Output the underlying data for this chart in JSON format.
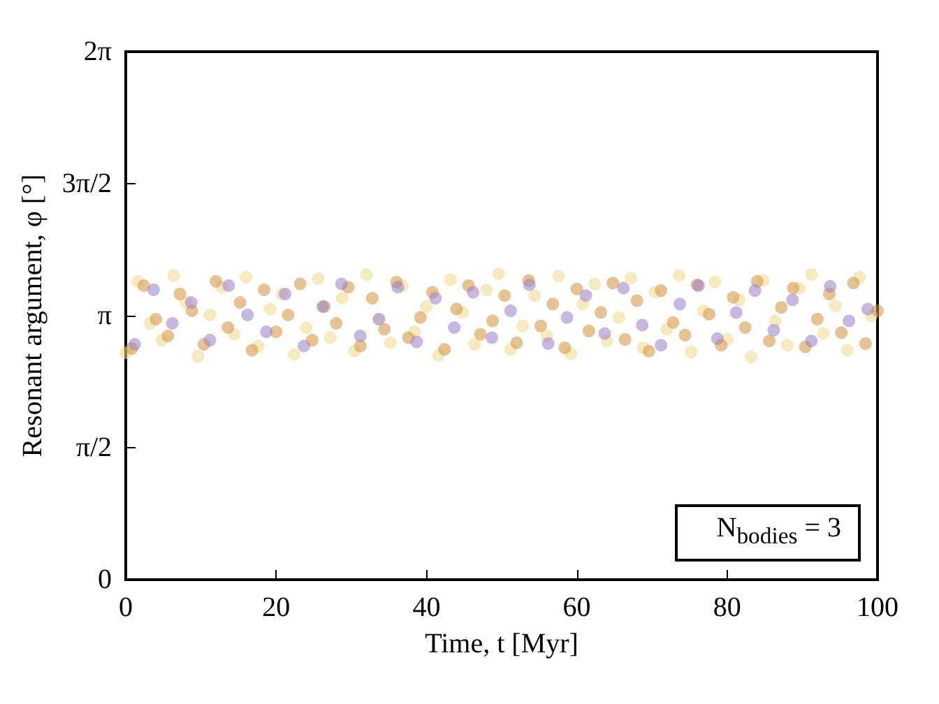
{
  "chart_data": {
    "type": "scatter",
    "xlabel": "Time, t [Myr]",
    "ylabel": "Resonant argument, φ [°]",
    "xlim": [
      0,
      100
    ],
    "xticks": [
      0,
      20,
      40,
      60,
      80,
      100
    ],
    "ylim": [
      0,
      6.2832
    ],
    "yticks": [
      {
        "value": 0,
        "label": "0"
      },
      {
        "value": 1.5708,
        "label": "π/2"
      },
      {
        "value": 3.1416,
        "label": "π"
      },
      {
        "value": 4.7124,
        "label": "3π/2"
      },
      {
        "value": 6.2832,
        "label": "2π"
      }
    ],
    "grid": false,
    "marker": "circle",
    "annotations": [
      "N$_{bodies}$ = 3"
    ],
    "series": [
      {
        "color": "#f0d88a",
        "x": [
          0,
          1.6,
          3.2,
          4.8,
          6.4,
          8,
          9.6,
          11.2,
          12.8,
          14.4,
          16,
          17.6,
          19.2,
          20.8,
          22.4,
          24,
          25.6,
          27.2,
          28.8,
          30.4,
          32,
          33.6,
          35.2,
          36.8,
          38.4,
          40,
          41.6,
          43.2,
          44.8,
          46.4,
          48,
          49.6,
          51.2,
          52.8,
          54.4,
          56,
          57.6,
          59.2,
          60.8,
          62.4,
          64,
          65.6,
          67.2,
          68.8,
          70.4,
          72,
          73.6,
          75.2,
          76.8,
          78.4,
          80,
          81.6,
          83.2,
          84.8,
          86.4,
          88,
          89.6,
          91.2,
          92.8,
          94.4,
          96,
          97.6,
          99.2
        ],
        "values": [
          2.7,
          3.55,
          3.05,
          2.85,
          3.62,
          3.3,
          2.66,
          3.15,
          3.48,
          2.92,
          3.6,
          2.78,
          3.22,
          3.4,
          2.68,
          3.0,
          3.58,
          2.88,
          3.35,
          2.72,
          3.63,
          3.1,
          2.82,
          3.5,
          2.95,
          3.25,
          2.67,
          3.57,
          3.18,
          2.8,
          3.45,
          3.64,
          2.74,
          3.02,
          3.38,
          2.9,
          3.61,
          2.69,
          3.28,
          3.52,
          2.84,
          3.12,
          3.59,
          2.76,
          3.42,
          2.98,
          3.62,
          2.71,
          3.2,
          3.54,
          2.86,
          3.33,
          2.65,
          3.56,
          3.08,
          2.79,
          3.47,
          3.63,
          2.93,
          3.26,
          2.73,
          3.6,
          3.14
        ]
      },
      {
        "color": "#d4913a",
        "x": [
          0.8,
          2.4,
          4,
          5.6,
          7.2,
          8.8,
          10.4,
          12,
          13.6,
          15.2,
          16.8,
          18.4,
          20,
          21.6,
          23.2,
          24.8,
          26.4,
          28,
          29.6,
          31.2,
          32.8,
          34.4,
          36,
          37.6,
          39.2,
          40.8,
          42.4,
          44,
          45.6,
          47.2,
          48.8,
          50.4,
          52,
          53.6,
          55.2,
          56.8,
          58.4,
          60,
          61.6,
          63.2,
          64.8,
          66.4,
          68,
          69.6,
          71.2,
          72.8,
          74.4,
          76,
          77.6,
          79.2,
          80.8,
          82.4,
          84,
          85.6,
          87.2,
          88.8,
          90.4,
          92,
          93.6,
          95.2,
          96.8,
          98.4,
          100
        ],
        "values": [
          2.75,
          3.5,
          3.1,
          2.9,
          3.4,
          3.2,
          2.8,
          3.55,
          3.0,
          3.3,
          2.73,
          3.45,
          2.95,
          3.15,
          3.52,
          2.85,
          3.25,
          3.05,
          3.48,
          2.78,
          3.35,
          2.98,
          3.54,
          2.88,
          3.12,
          3.42,
          2.74,
          3.22,
          3.5,
          2.92,
          3.08,
          3.38,
          2.82,
          3.56,
          3.02,
          3.28,
          2.76,
          3.46,
          2.96,
          3.18,
          3.53,
          2.86,
          3.32,
          2.72,
          3.44,
          3.06,
          2.91,
          3.51,
          3.16,
          2.79,
          3.36,
          3.0,
          3.55,
          2.84,
          3.24,
          3.47,
          2.77,
          3.1,
          3.4,
          2.94,
          3.53,
          2.81,
          3.2
        ]
      },
      {
        "color": "#9b7ec8",
        "x": [
          1.2,
          3.7,
          6.2,
          8.7,
          11.2,
          13.7,
          16.2,
          18.7,
          21.2,
          23.7,
          26.2,
          28.7,
          31.2,
          33.7,
          36.2,
          38.7,
          41.2,
          43.7,
          46.2,
          48.7,
          51.2,
          53.7,
          56.2,
          58.7,
          61.2,
          63.7,
          66.2,
          68.7,
          71.2,
          73.7,
          76.2,
          78.7,
          81.2,
          83.7,
          86.2,
          88.7,
          91.2,
          93.7,
          96.2,
          98.7
        ],
        "values": [
          2.8,
          3.45,
          3.05,
          3.3,
          2.85,
          3.5,
          3.15,
          2.95,
          3.4,
          2.78,
          3.25,
          3.52,
          2.9,
          3.1,
          3.48,
          2.83,
          3.35,
          3.0,
          3.42,
          2.88,
          3.2,
          3.51,
          2.81,
          3.12,
          3.38,
          2.93,
          3.47,
          3.03,
          2.79,
          3.28,
          3.5,
          2.87,
          3.18,
          3.44,
          2.97,
          3.33,
          2.84,
          3.49,
          3.08,
          3.22
        ]
      }
    ]
  }
}
